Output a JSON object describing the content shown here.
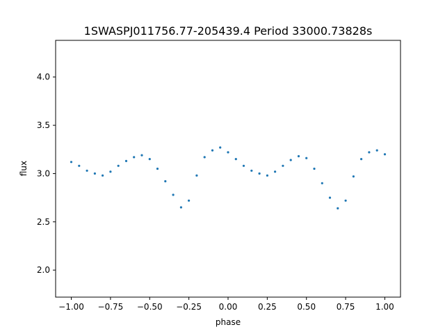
{
  "chart_data": {
    "type": "scatter",
    "title": "1SWASPJ011756.77-205439.4 Period 33000.73828s",
    "xlabel": "phase",
    "ylabel": "flux",
    "xlim": [
      -1.1,
      1.1
    ],
    "ylim": [
      1.72,
      4.38
    ],
    "xticks": [
      -1.0,
      -0.75,
      -0.5,
      -0.25,
      0.0,
      0.25,
      0.5,
      0.75,
      1.0
    ],
    "xtick_labels": [
      "−1.00",
      "−0.75",
      "−0.50",
      "−0.25",
      "0.00",
      "0.25",
      "0.50",
      "0.75",
      "1.00"
    ],
    "yticks": [
      2.0,
      2.5,
      3.0,
      3.5,
      4.0
    ],
    "ytick_labels": [
      "2.0",
      "2.5",
      "3.0",
      "3.5",
      "4.0"
    ],
    "grid": false,
    "marker_color": "#1f77b4",
    "series": [
      {
        "x": [
          -1.0,
          -0.95,
          -0.9,
          -0.85,
          -0.8,
          -0.75,
          -0.7,
          -0.65,
          -0.6,
          -0.55,
          -0.5,
          -0.45,
          -0.4,
          -0.35,
          -0.3,
          -0.25,
          -0.2,
          -0.15,
          -0.1,
          -0.05,
          0.0,
          0.05,
          0.1,
          0.15,
          0.2,
          0.25,
          0.3,
          0.35,
          0.4,
          0.45,
          0.5,
          0.55,
          0.6,
          0.65,
          0.7,
          0.75,
          0.8,
          0.85,
          0.9,
          0.95,
          1.0
        ],
        "y": [
          3.12,
          3.08,
          3.03,
          3.0,
          2.98,
          3.02,
          3.08,
          3.13,
          3.17,
          3.19,
          3.15,
          3.05,
          2.92,
          2.78,
          2.65,
          2.72,
          2.98,
          3.17,
          3.24,
          3.27,
          3.22,
          3.15,
          3.08,
          3.03,
          3.0,
          2.98,
          3.02,
          3.08,
          3.14,
          3.18,
          3.16,
          3.05,
          2.9,
          2.75,
          2.64,
          2.72,
          2.97,
          3.15,
          3.22,
          3.24,
          3.2
        ]
      }
    ]
  }
}
